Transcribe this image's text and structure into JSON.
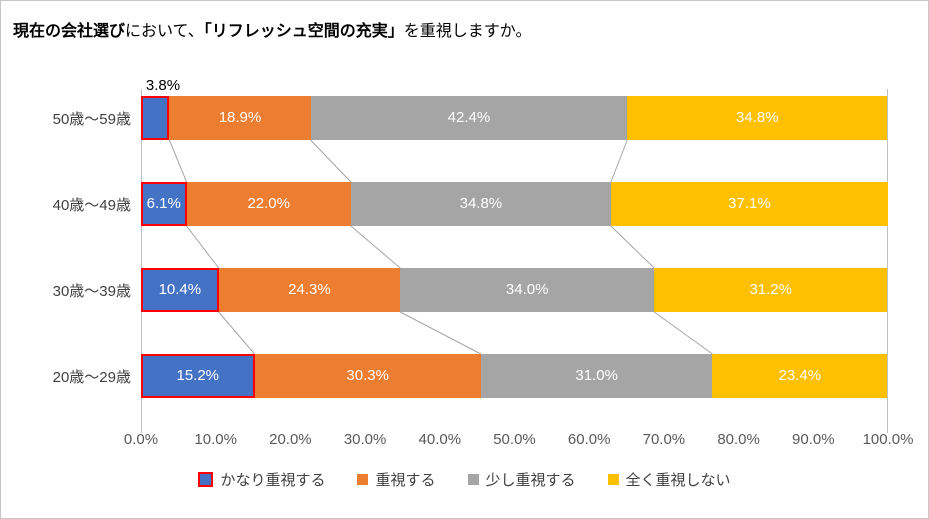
{
  "title": {
    "full": "現在の会社選びにおいて、「リフレッシュ空間の充実」を重視しますか。",
    "parts": [
      {
        "text": "現在の会社選び",
        "bold": true
      },
      {
        "text": "において、",
        "bold": false
      },
      {
        "text": "「リフレッシュ空間の充実」",
        "bold": true
      },
      {
        "text": "を重視しますか。",
        "bold": false
      }
    ]
  },
  "chart_data": {
    "type": "bar",
    "orientation": "horizontal",
    "stacked": true,
    "unit": "%",
    "title": "現在の会社選びにおいて、「リフレッシュ空間の充実」を重視しますか。",
    "categories": [
      "50歳〜59歳",
      "40歳〜49歳",
      "30歳〜39歳",
      "20歳〜29歳"
    ],
    "series": [
      {
        "name": "かなり重視する",
        "color": "#4472C4",
        "border_color": "#FF0000",
        "values": [
          3.8,
          6.1,
          10.4,
          15.2
        ]
      },
      {
        "name": "重視する",
        "color": "#ED7D31",
        "values": [
          18.9,
          22.0,
          24.3,
          30.3
        ]
      },
      {
        "name": "少し重視する",
        "color": "#A5A5A5",
        "values": [
          42.4,
          34.8,
          34.0,
          31.0
        ]
      },
      {
        "name": "全く重視しない",
        "color": "#FFC000",
        "values": [
          34.8,
          37.1,
          31.2,
          23.4
        ]
      }
    ],
    "x_ticks": [
      "0.0%",
      "10.0%",
      "20.0%",
      "30.0%",
      "40.0%",
      "50.0%",
      "60.0%",
      "70.0%",
      "80.0%",
      "90.0%",
      "100.0%"
    ],
    "xlim": [
      0,
      100
    ],
    "data_labels": true,
    "label_color_inside": "#FFFFFF",
    "label_color_outside": "#000000",
    "legend_position": "bottom",
    "grid": false,
    "axis_color": "#BFBFBF",
    "connector_color": "#A6A6A6",
    "tick_label_color": "#595959",
    "category_label_color": "#404040"
  }
}
